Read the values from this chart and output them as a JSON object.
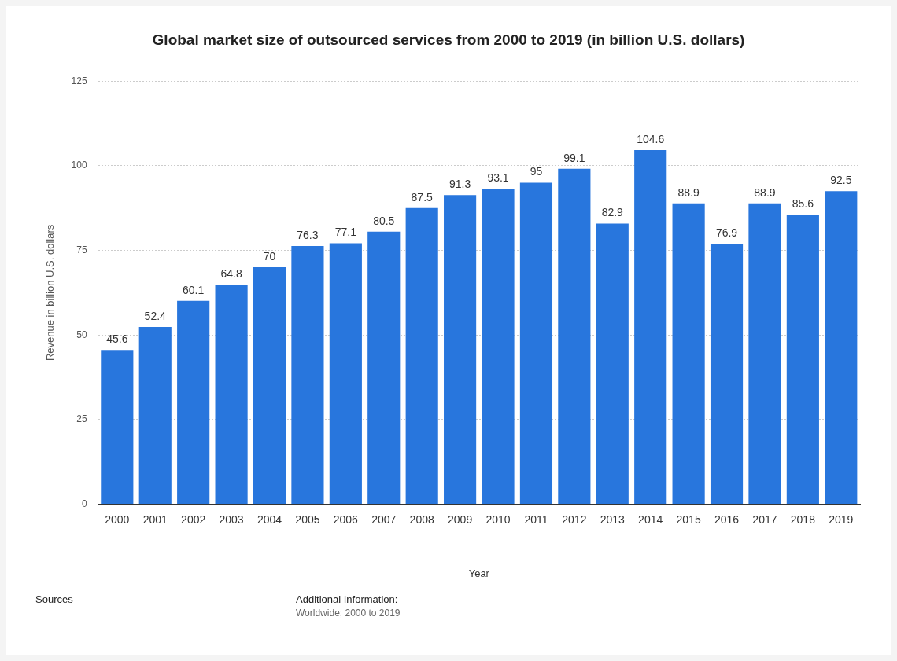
{
  "chart_data": {
    "type": "bar",
    "title": "Global market size of outsourced services from 2000 to 2019 (in billion U.S. dollars)",
    "xlabel": "Year",
    "ylabel": "Revenue in billion U.S. dollars",
    "categories": [
      "2000",
      "2001",
      "2002",
      "2003",
      "2004",
      "2005",
      "2006",
      "2007",
      "2008",
      "2009",
      "2010",
      "2011",
      "2012",
      "2013",
      "2014",
      "2015",
      "2016",
      "2017",
      "2018",
      "2019"
    ],
    "values": [
      45.6,
      52.4,
      60.1,
      64.8,
      70,
      76.3,
      77.1,
      80.5,
      87.5,
      91.3,
      93.1,
      95,
      99.1,
      82.9,
      104.6,
      88.9,
      76.9,
      88.9,
      85.6,
      92.5
    ],
    "color": "#2876dd",
    "ylim": [
      0,
      125
    ],
    "yticks": [
      0,
      25,
      50,
      75,
      100,
      125
    ],
    "grid": "y",
    "data_labels": true,
    "legend": false,
    "annotations": [
      "Sources",
      "Additional Information:",
      "Worldwide; 2000 to 2019"
    ]
  }
}
